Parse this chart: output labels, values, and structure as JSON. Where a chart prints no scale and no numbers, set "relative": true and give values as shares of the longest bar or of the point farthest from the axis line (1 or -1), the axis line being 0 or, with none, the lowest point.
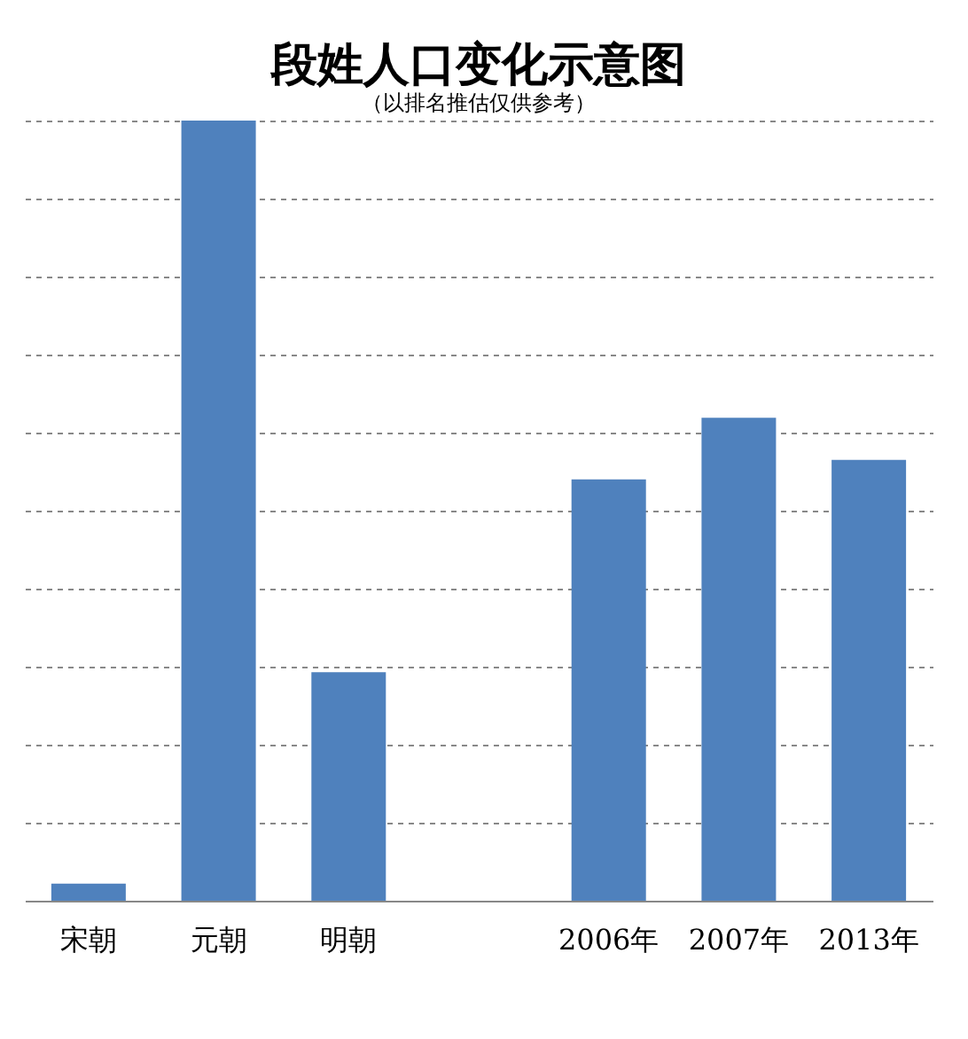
{
  "chart_data": {
    "type": "bar",
    "title": "段姓人口变化示意图",
    "subtitle": "（以排名推估仅供参考）",
    "relative": true,
    "categories": [
      "宋朝",
      "元朝",
      "明朝",
      null,
      "2006年",
      "2007年",
      "2013年"
    ],
    "values": [
      0.022,
      1,
      0.293,
      null,
      0.54,
      0.619,
      0.565
    ],
    "color": "#4f81bd",
    "grid": "y"
  }
}
